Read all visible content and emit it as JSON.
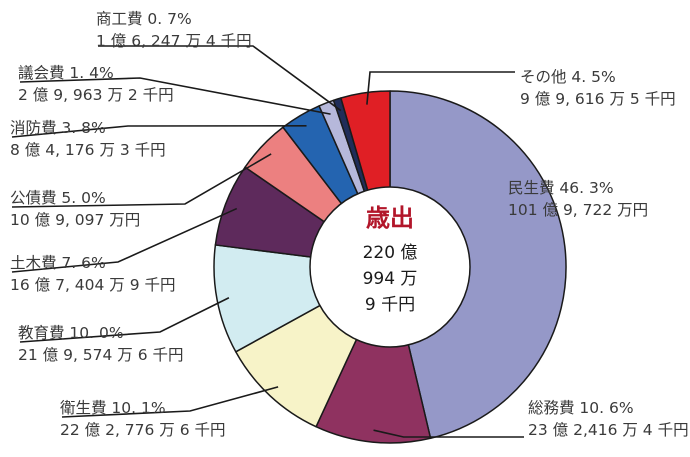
{
  "chart_data": {
    "type": "pie",
    "variant": "donut",
    "title": "",
    "center_title": "歳出",
    "center_lines": [
      "220 億",
      "994 万",
      "9 千円"
    ],
    "slices": [
      {
        "name": "民生費",
        "percent_text": "46. 3%",
        "amount_text": "101 億 9, 722 万円",
        "value": 46.3,
        "color": "#9598c8"
      },
      {
        "name": "総務費",
        "percent_text": "10. 6%",
        "amount_text": "23 億 2,416 万 4 千円",
        "value": 10.6,
        "color": "#8f3260"
      },
      {
        "name": "衛生費",
        "percent_text": "10. 1%",
        "amount_text": "22 億 2, 776 万 6 千円",
        "value": 10.1,
        "color": "#f7f3c8"
      },
      {
        "name": "教育費",
        "percent_text": "10. 0%",
        "amount_text": "21 億 9, 574 万 6 千円",
        "value": 10.0,
        "color": "#d2ecf1"
      },
      {
        "name": "土木費",
        "percent_text": "7. 6%",
        "amount_text": "16 億 7, 404 万 9 千円",
        "value": 7.6,
        "color": "#5e2a5c"
      },
      {
        "name": "公債費",
        "percent_text": "5. 0%",
        "amount_text": "10 億 9, 097 万円",
        "value": 5.0,
        "color": "#ec8080"
      },
      {
        "name": "消防費",
        "percent_text": "3. 8%",
        "amount_text": "8 億 4, 176 万 3 千円",
        "value": 3.8,
        "color": "#2464b0"
      },
      {
        "name": "議会費",
        "percent_text": "1. 4%",
        "amount_text": "2 億 9, 963 万 2 千円",
        "value": 1.4,
        "color": "#b6b8db"
      },
      {
        "name": "商工費",
        "percent_text": "0. 7%",
        "amount_text": "1 億 6, 247 万 4 千円",
        "value": 0.7,
        "color": "#1f2d59"
      },
      {
        "name": "その他",
        "percent_text": "4. 5%",
        "amount_text": "9 億 9, 616 万 5 千円",
        "value": 4.5,
        "color": "#e01f25"
      }
    ]
  }
}
